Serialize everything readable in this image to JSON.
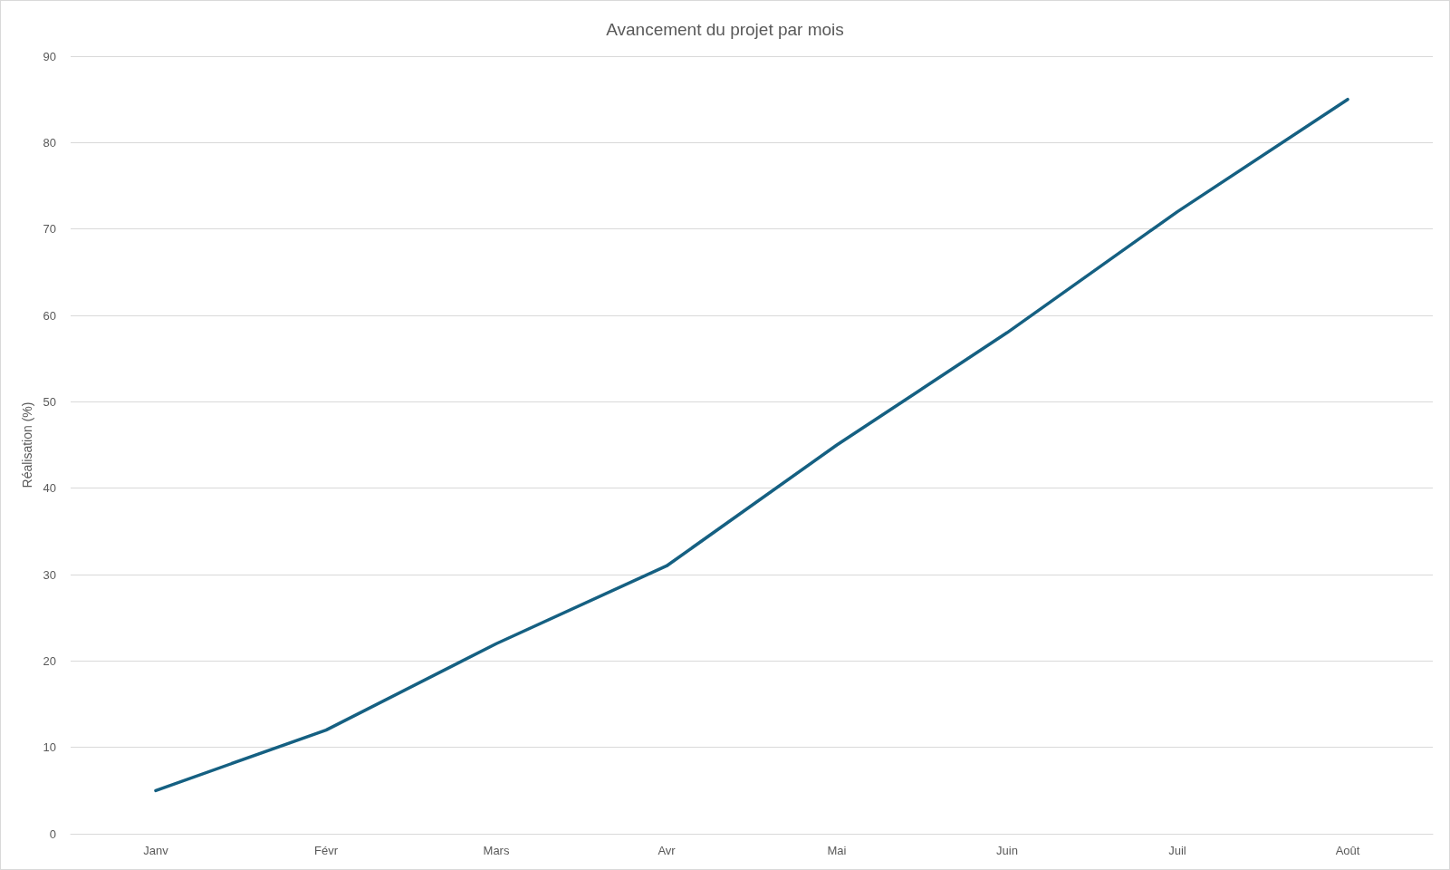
{
  "chart_data": {
    "type": "line",
    "title": "Avancement du projet par mois",
    "ylabel": "Réalisation (%)",
    "categories": [
      "Janv",
      "Févr",
      "Mars",
      "Avr",
      "Mai",
      "Juin",
      "Juil",
      "Août"
    ],
    "series": [
      {
        "color": "#156082",
        "values": [
          5,
          12,
          22,
          31,
          45,
          58,
          72,
          85
        ]
      }
    ],
    "ylim": [
      0,
      90
    ],
    "yticks": [
      0,
      10,
      20,
      30,
      40,
      50,
      60,
      70,
      80,
      90
    ],
    "grid": "y",
    "marker": "none",
    "line_style": "solid"
  }
}
